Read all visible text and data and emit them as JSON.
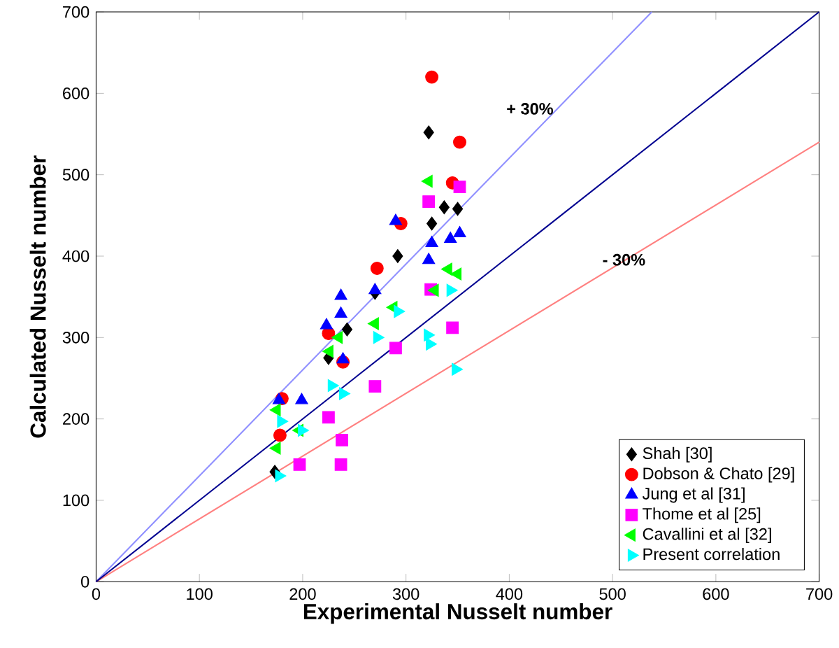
{
  "chart_data": {
    "type": "scatter",
    "xlabel": "Experimental Nusselt number",
    "ylabel": "Calculated Nusselt number",
    "xlim": [
      0,
      700
    ],
    "ylim": [
      0,
      700
    ],
    "xticks": [
      0,
      100,
      200,
      300,
      400,
      500,
      600,
      700
    ],
    "yticks": [
      0,
      100,
      200,
      300,
      400,
      500,
      600,
      700
    ],
    "grid": false,
    "legend": "bottom right",
    "annotations": [
      "+ 30%",
      "- 30%"
    ],
    "series": [
      {
        "type": "line",
        "color": "#9090ff",
        "x": [
          0,
          538
        ],
        "values": [
          0,
          700
        ]
      },
      {
        "type": "line",
        "color": "#ff8080",
        "x": [
          0,
          700
        ],
        "values": [
          0,
          540
        ]
      },
      {
        "type": "line",
        "color": "#000090",
        "x": [
          0,
          700
        ],
        "values": [
          0,
          700
        ]
      },
      {
        "name": "Shah [30]",
        "color": "#000000",
        "marker": "diamond",
        "x": [
          173,
          225,
          243,
          270,
          292,
          325,
          337,
          350,
          322
        ],
        "values": [
          135,
          275,
          310,
          355,
          400,
          440,
          460,
          458,
          552
        ]
      },
      {
        "name": "Dobson & Chato [29]",
        "color": "#ff0000",
        "marker": "circle",
        "x": [
          325,
          352,
          345,
          295,
          272,
          225,
          239,
          180,
          178
        ],
        "values": [
          620,
          540,
          490,
          440,
          385,
          305,
          270,
          225,
          180
        ]
      },
      {
        "name": "Jung et al [31]",
        "color": "#0000ff",
        "marker": "triangle",
        "x": [
          290,
          343,
          325,
          322,
          270,
          237,
          237,
          223,
          239,
          199,
          177,
          352
        ],
        "values": [
          443,
          421,
          416,
          395,
          358,
          351,
          329,
          315,
          273,
          223,
          223,
          428
        ]
      },
      {
        "name": "Thome et al [25]",
        "color": "#ff00ff",
        "marker": "square",
        "x": [
          352,
          322,
          324,
          345,
          290,
          270,
          225,
          238,
          237,
          197
        ],
        "values": [
          485,
          467,
          359,
          312,
          287,
          240,
          202,
          174,
          144,
          144
        ]
      },
      {
        "name": "Cavallini et al [32]",
        "color": "#00ff00",
        "marker": "triangle-left",
        "x": [
          322,
          341,
          328,
          288,
          270,
          235,
          226,
          175,
          197,
          175,
          350
        ],
        "values": [
          492,
          384,
          358,
          337,
          317,
          300,
          283,
          211,
          186,
          164,
          378
        ]
      },
      {
        "name": "Present correlation",
        "color": "#00ffff",
        "marker": "triangle-right",
        "x": [
          343,
          292,
          272,
          323,
          348,
          228,
          239,
          199,
          179,
          177,
          321
        ],
        "values": [
          358,
          332,
          300,
          292,
          261,
          241,
          231,
          186,
          197,
          130,
          303
        ]
      }
    ]
  }
}
